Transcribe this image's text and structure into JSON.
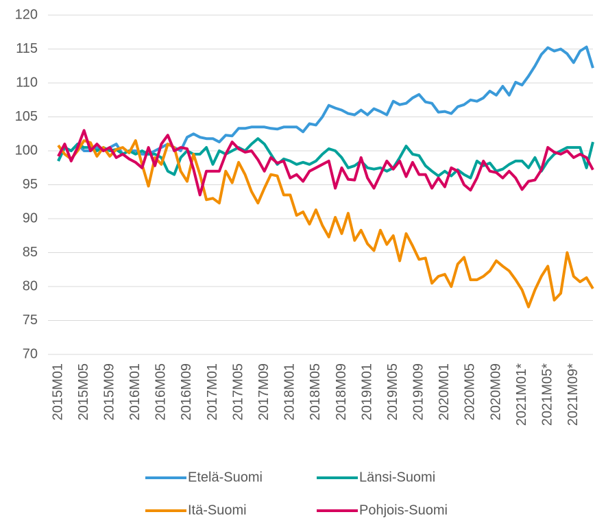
{
  "chart_data": {
    "type": "line",
    "categories": [
      "2015M01",
      null,
      null,
      null,
      "2015M05",
      null,
      null,
      null,
      "2015M09",
      null,
      null,
      null,
      "2016M01",
      null,
      null,
      null,
      "2016M05",
      null,
      null,
      null,
      "2016M09",
      null,
      null,
      null,
      "2017M01",
      null,
      null,
      null,
      "2017M05",
      null,
      null,
      null,
      "2017M09",
      null,
      null,
      null,
      "2018M01",
      null,
      null,
      null,
      "2018M05",
      null,
      null,
      null,
      "2018M09",
      null,
      null,
      null,
      "2019M01",
      null,
      null,
      null,
      "2019M05",
      null,
      null,
      null,
      "2019M09",
      null,
      null,
      null,
      "2020M01",
      null,
      null,
      null,
      "2020M05",
      null,
      null,
      null,
      "2020M09",
      null,
      null,
      null,
      "2021M01*",
      null,
      null,
      null,
      "2021M05*",
      null,
      null,
      null,
      "2021M09*",
      null,
      null,
      null
    ],
    "ylim": [
      70,
      120
    ],
    "yticks": [
      70,
      75,
      80,
      85,
      90,
      95,
      100,
      105,
      110,
      115,
      120
    ],
    "grid": true,
    "legend": "bottom",
    "series": [
      {
        "name": "Etelä-Suomi",
        "color": "#3a9ad9",
        "values": [
          98.5,
          100.5,
          100,
          101,
          100,
          100,
          100.5,
          100,
          100.5,
          101,
          99.5,
          100,
          100,
          99.5,
          99.5,
          100,
          100.5,
          101,
          100.5,
          100,
          102,
          102.5,
          102,
          101.8,
          101.8,
          101.3,
          102.3,
          102.2,
          103.3,
          103.3,
          103.5,
          103.5,
          103.5,
          103.3,
          103.2,
          103.5,
          103.5,
          103.5,
          102.8,
          104,
          103.8,
          105,
          106.7,
          106.3,
          106,
          105.5,
          105.3,
          106,
          105.3,
          106.2,
          105.8,
          105.3,
          107.3,
          106.8,
          107,
          107.8,
          108.3,
          107.2,
          107,
          105.7,
          105.8,
          105.5,
          106.5,
          106.8,
          107.5,
          107.3,
          107.8,
          108.8,
          108.2,
          109.5,
          108.2,
          110.1,
          109.7,
          111,
          112.5,
          114.2,
          115.2,
          114.7,
          115,
          114.3,
          113,
          114.7,
          115.3,
          112.2
        ]
      },
      {
        "name": "Länsi-Suomi",
        "color": "#00a19a",
        "values": [
          98.5,
          100.5,
          100,
          101,
          100.5,
          100.5,
          100,
          100.5,
          100,
          100.2,
          99.5,
          100,
          99.5,
          100,
          99.5,
          99.5,
          99,
          97,
          96.5,
          99,
          100,
          99.5,
          99.5,
          100.5,
          98,
          100,
          99.5,
          100,
          100.5,
          100,
          101,
          101.8,
          101,
          99.5,
          98,
          98.8,
          98.5,
          98,
          98.3,
          98,
          98.5,
          99.5,
          100.3,
          100,
          99,
          97.5,
          97.8,
          98.5,
          97.5,
          97.3,
          97.5,
          97,
          97.5,
          99,
          100.7,
          99.5,
          99.3,
          97.8,
          97,
          96.3,
          97,
          96.3,
          97.2,
          96.5,
          96,
          98.5,
          97.8,
          98.2,
          97,
          97.3,
          98,
          98.5,
          98.5,
          97.5,
          99,
          97,
          98.5,
          99.5,
          100,
          100.5,
          100.5,
          100.5,
          97.5,
          101.3
        ]
      },
      {
        "name": "Itä-Suomi",
        "color": "#f28e00",
        "values": [
          100.8,
          99.5,
          98.8,
          100,
          101.5,
          101.2,
          99.2,
          100.5,
          99.2,
          100.2,
          100.5,
          99.7,
          101.5,
          98,
          94.8,
          99,
          98,
          101,
          100.5,
          97,
          95.5,
          99.5,
          96.5,
          92.8,
          93,
          92.3,
          97,
          95.3,
          98.3,
          96.5,
          94,
          92.3,
          94.5,
          96.5,
          96.3,
          93.5,
          93.5,
          90.5,
          91,
          89.2,
          91.3,
          89,
          87.3,
          90.2,
          87.8,
          90.8,
          86.8,
          88.3,
          86.3,
          85.3,
          88.3,
          86.2,
          87.5,
          83.8,
          87.8,
          86,
          84,
          84.2,
          80.5,
          81.5,
          81.8,
          80,
          83.3,
          84.3,
          81,
          81,
          81.5,
          82.3,
          83.8,
          83,
          82.3,
          81,
          79.5,
          77,
          79.5,
          81.5,
          83,
          78,
          79,
          85,
          81.5,
          80.7,
          81.3,
          79.7
        ]
      },
      {
        "name": "Pohjois-Suomi",
        "color": "#d6005e",
        "values": [
          99.2,
          101,
          98.5,
          100.5,
          103,
          100,
          101,
          100,
          100.5,
          99,
          99.5,
          98.8,
          98.3,
          97.5,
          100.5,
          97.8,
          101,
          102.3,
          100,
          100.5,
          100.3,
          97.3,
          93.5,
          97,
          97,
          97,
          99.5,
          101.3,
          100.3,
          99.8,
          100,
          98.7,
          97,
          99,
          98.2,
          98.5,
          96,
          96.5,
          95.5,
          97,
          97.5,
          98,
          98.5,
          94.5,
          97.5,
          95.8,
          95.7,
          99,
          96,
          94.5,
          96.5,
          98.5,
          97.3,
          98.5,
          96.2,
          98.3,
          96.5,
          96.5,
          94.5,
          96,
          94.7,
          97.5,
          97,
          95,
          94.2,
          96,
          98.5,
          97,
          96.8,
          96,
          97,
          96,
          94.3,
          95.5,
          95.7,
          97.2,
          100.5,
          99.8,
          99.5,
          100,
          99,
          99.5,
          99,
          97.2
        ]
      }
    ]
  }
}
